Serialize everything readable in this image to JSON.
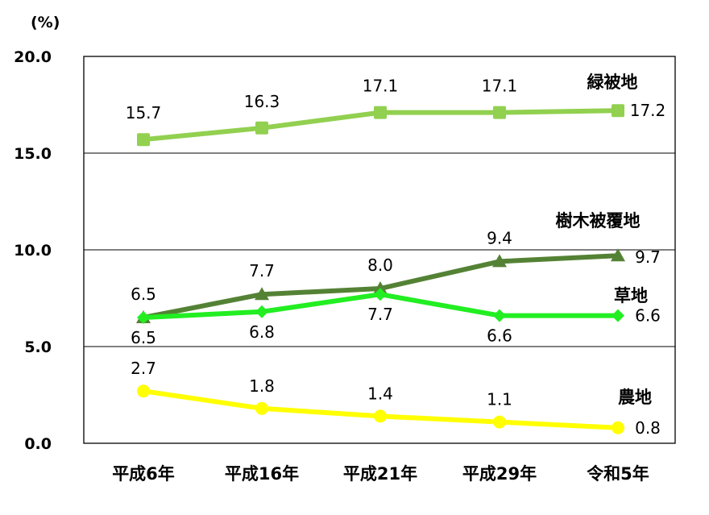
{
  "chart_data": {
    "type": "line",
    "unit_label": "(%)",
    "categories": [
      "平成6年",
      "平成16年",
      "平成21年",
      "平成29年",
      "令和5年"
    ],
    "y_ticks": [
      "0.0",
      "5.0",
      "10.0",
      "15.0",
      "20.0"
    ],
    "ylim": [
      0,
      20
    ],
    "grid": "horizontal at 5.0, 10.0, 15.0",
    "legend": "series names placed at right end of each line",
    "series": [
      {
        "name": "緑被地",
        "values": [
          15.7,
          16.3,
          17.1,
          17.1,
          17.2
        ],
        "labels": [
          "15.7",
          "16.3",
          "17.1",
          "17.1",
          "17.2"
        ],
        "color": "#92D050",
        "marker": "square"
      },
      {
        "name": "樹木被覆地",
        "values": [
          6.5,
          7.7,
          8.0,
          9.4,
          9.7
        ],
        "labels": [
          "6.5",
          "7.7",
          "8.0",
          "9.4",
          "9.7"
        ],
        "color": "#548235",
        "marker": "triangle"
      },
      {
        "name": "草地",
        "values": [
          6.5,
          6.8,
          7.7,
          6.6,
          6.6
        ],
        "labels": [
          "6.5",
          "6.8",
          "7.7",
          "6.6",
          "6.6"
        ],
        "color": "#22EE22",
        "marker": "diamond"
      },
      {
        "name": "農地",
        "values": [
          2.7,
          1.8,
          1.4,
          1.1,
          0.8
        ],
        "labels": [
          "2.7",
          "1.8",
          "1.4",
          "1.1",
          "0.8"
        ],
        "color": "#FFFF00",
        "marker": "circle"
      }
    ]
  }
}
